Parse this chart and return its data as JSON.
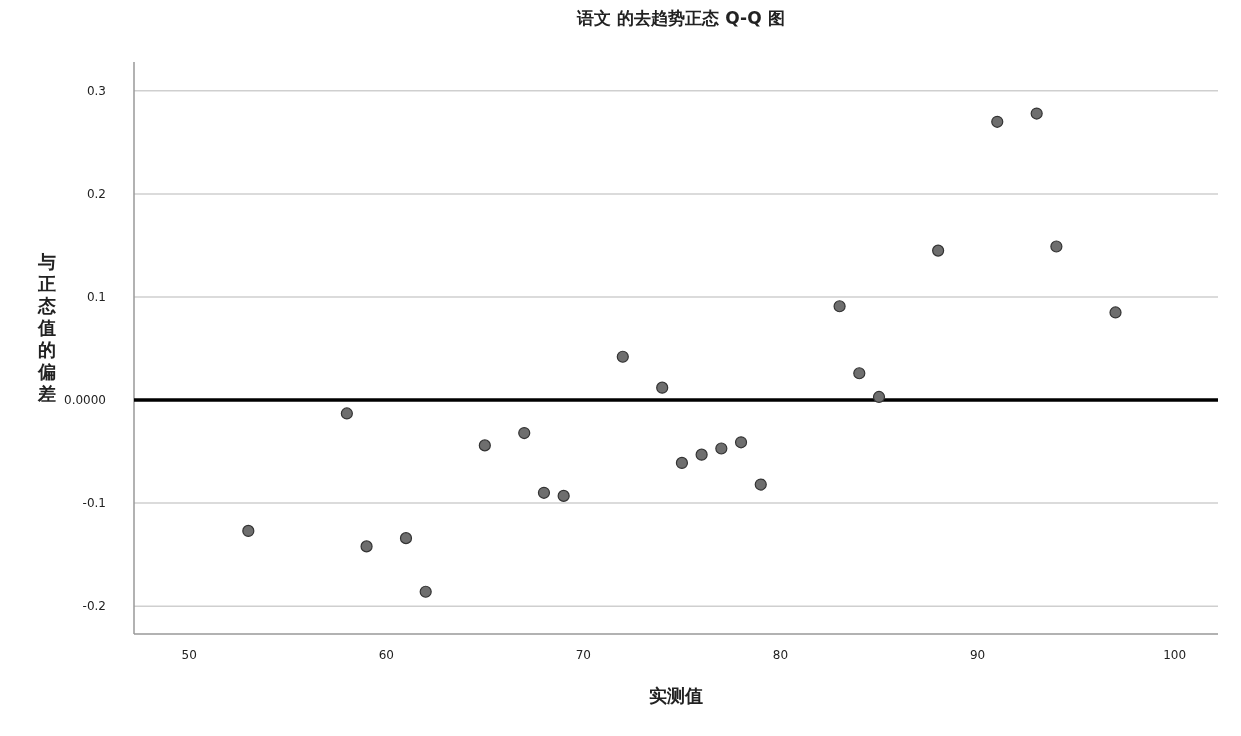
{
  "chart_data": {
    "type": "scatter",
    "title": "语文 的去趋势正态 Q-Q 图",
    "xlabel": "实测值",
    "ylabel": "与正态值的偏差",
    "x": [
      53,
      58,
      59,
      61,
      62,
      65,
      67,
      68,
      69,
      72,
      74,
      75,
      76,
      77,
      78,
      79,
      83,
      84,
      85,
      88,
      91,
      93,
      94,
      97
    ],
    "values": [
      -0.127,
      -0.013,
      -0.142,
      -0.134,
      -0.186,
      -0.044,
      -0.032,
      -0.09,
      -0.093,
      0.042,
      0.012,
      -0.061,
      -0.053,
      -0.047,
      -0.041,
      -0.082,
      0.091,
      0.026,
      0.003,
      0.145,
      0.27,
      0.278,
      0.149,
      0.085
    ],
    "color": "#6e6e6e",
    "marker": "circle",
    "xlim": [
      47.2,
      102.2
    ],
    "ylim": [
      -0.227,
      0.328
    ],
    "xticks": [
      50,
      60,
      70,
      80,
      90,
      100
    ],
    "yticks": [
      -0.2,
      -0.1,
      {
        "value": 0,
        "label": "0.0000"
      },
      0.1,
      0.2,
      0.3
    ],
    "grid": "y",
    "ref_lines": [
      {
        "axis": "y",
        "value": 0,
        "color": "#000000"
      }
    ]
  }
}
